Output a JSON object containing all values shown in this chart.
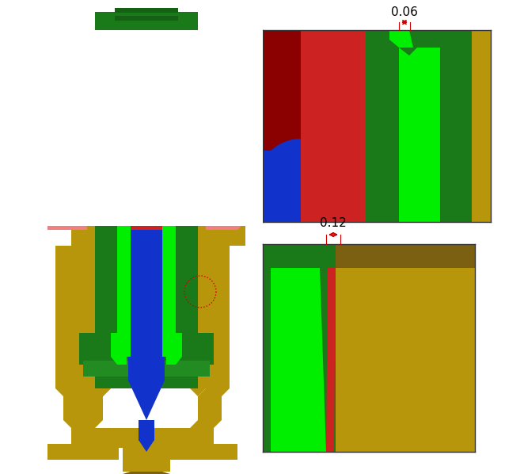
{
  "bg_color": "#ffffff",
  "gold": "#B8960C",
  "dark_gold": "#7A6010",
  "green_dark": "#1A7A1A",
  "green_bright": "#00EE00",
  "green_med": "#228B22",
  "green_cap": "#2E8B2E",
  "red_part": "#CC2222",
  "red_dark": "#8B0000",
  "pink_part": "#F08080",
  "blue_part": "#1133CC",
  "ann_color": "#CC0000",
  "dim1_text": "0.06",
  "dim2_text": "0.12"
}
